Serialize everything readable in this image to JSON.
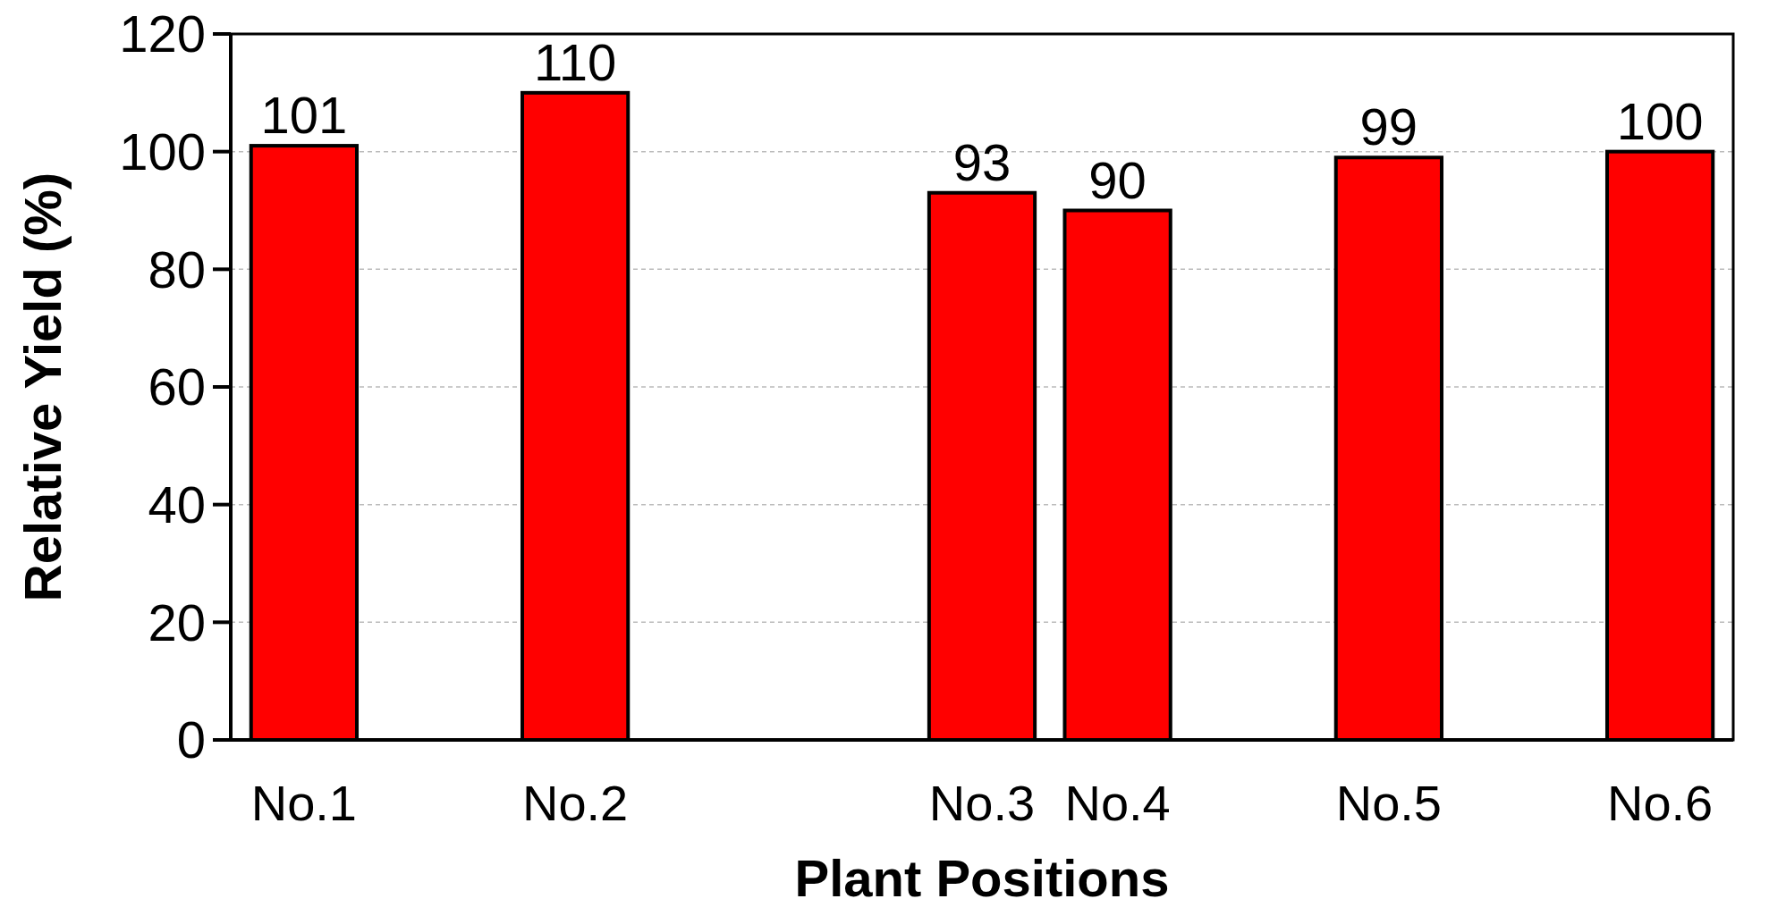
{
  "chart_data": {
    "type": "bar",
    "xlabel": "Plant Positions",
    "ylabel": "Relative Yield (%)",
    "categories": [
      "No.1",
      null,
      "No.2",
      null,
      null,
      "No.3",
      "No.4",
      null,
      "No.5",
      null,
      "No.6"
    ],
    "values": [
      101,
      null,
      110,
      null,
      null,
      93,
      90,
      null,
      99,
      null,
      100
    ],
    "color": "#ff0000",
    "ylim": [
      0,
      120
    ],
    "yticks": [
      0,
      20,
      40,
      60,
      80,
      100,
      120
    ],
    "grid": "y",
    "data_labels": true
  }
}
